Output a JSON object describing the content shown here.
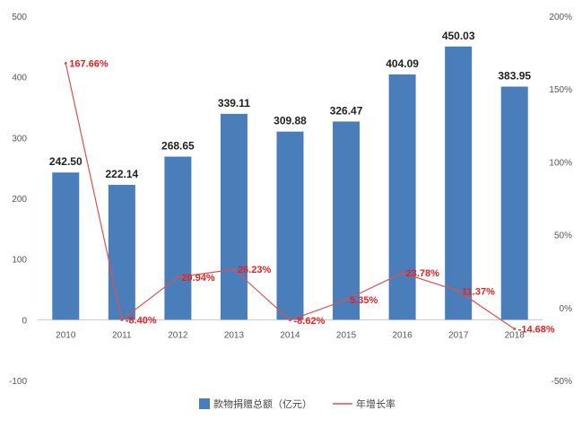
{
  "chart_data": {
    "type": "bar",
    "categories": [
      "2010",
      "2011",
      "2012",
      "2013",
      "2014",
      "2015",
      "2016",
      "2017",
      "2018"
    ],
    "series": [
      {
        "name": "款物捐赠总额（亿元）",
        "type": "bar",
        "axis": "left",
        "values": [
          242.5,
          222.14,
          268.65,
          339.11,
          309.88,
          326.47,
          404.09,
          450.03,
          383.95
        ],
        "labels": [
          "242.50",
          "222.14",
          "268.65",
          "339.11",
          "309.88",
          "326.47",
          "404.09",
          "450.03",
          "383.95"
        ],
        "color": "#4a7ebb"
      },
      {
        "name": "年增长率",
        "type": "line",
        "axis": "right",
        "values": [
          167.66,
          -8.4,
          20.94,
          26.23,
          -8.62,
          5.35,
          23.78,
          11.37,
          -14.68
        ],
        "labels": [
          "167.66%",
          "-8.40%",
          "20.94%",
          "26.23%",
          "-8.62%",
          "5.35%",
          "23.78%",
          "11.37%",
          "-14.68%"
        ],
        "color": "#e05050",
        "label_color": "#e8201f"
      }
    ],
    "y_left": {
      "ylim": [
        -100,
        500
      ],
      "ticks": [
        "-100",
        "0",
        "100",
        "200",
        "300",
        "400",
        "500"
      ]
    },
    "y_right": {
      "ylim": [
        -50,
        200
      ],
      "ticks": [
        "-50%",
        "0%",
        "50%",
        "100%",
        "150%",
        "200%"
      ]
    },
    "title": "",
    "xlabel": "",
    "ylabel": "",
    "grid": false,
    "legend_position": "bottom-center"
  }
}
